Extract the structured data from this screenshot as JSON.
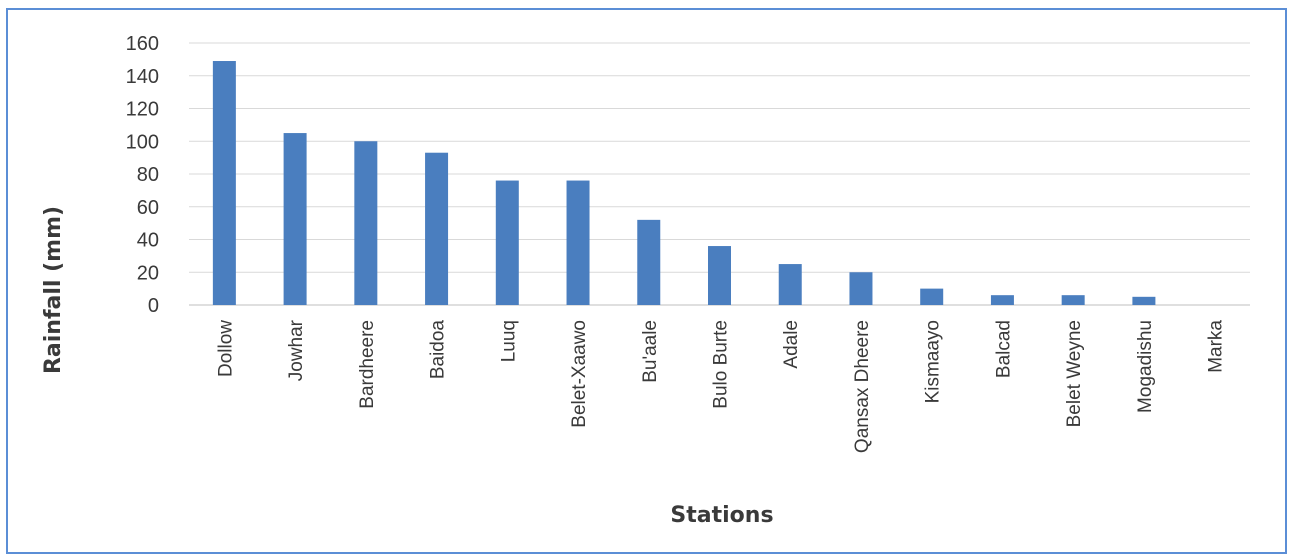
{
  "chart_data": {
    "type": "bar",
    "xlabel": "Stations",
    "ylabel": "Rainfall (mm)",
    "ylim": [
      0,
      160
    ],
    "yticks": [
      0,
      20,
      40,
      60,
      80,
      100,
      120,
      140,
      160
    ],
    "grid": true,
    "legend": "none",
    "bar_color": "#4a7ebf",
    "categories": [
      "Dollow",
      "Jowhar",
      "Bardheere",
      "Baidoa",
      "Luuq",
      "Belet-Xaawo",
      "Bu'aale",
      "Bulo Burte",
      "Adale",
      "Qansax Dheere",
      "Kismaayo",
      "Balcad",
      "Belet Weyne",
      "Mogadishu",
      "Marka"
    ],
    "values": [
      149,
      105,
      100,
      93,
      76,
      76,
      52,
      36,
      25,
      20,
      10,
      6,
      6,
      5,
      0
    ]
  }
}
